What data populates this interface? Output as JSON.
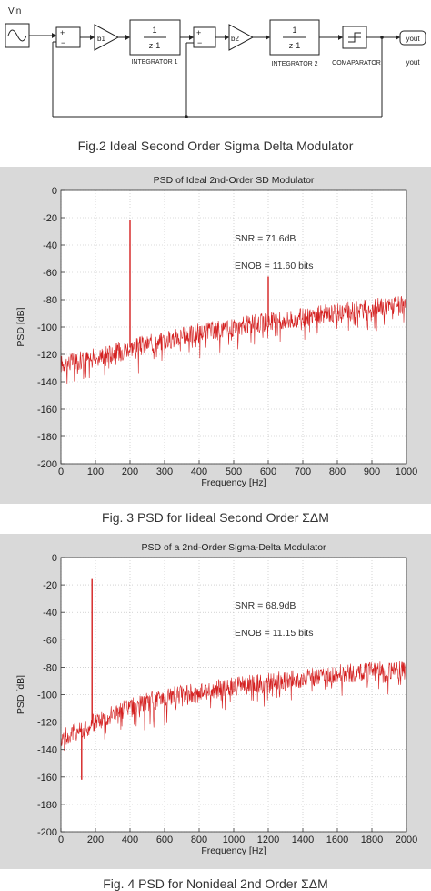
{
  "fig2": {
    "blocks": {
      "vin": "Vin",
      "b1": "b1",
      "b2": "b2",
      "int1_num": "1",
      "int1_den": "z-1",
      "int1_label": "INTEGRATOR 1",
      "int2_num": "1",
      "int2_den": "z-1",
      "int2_label": "INTEGRATOR 2",
      "comparator_label": "COMAPARATOR",
      "yout_block": "yout",
      "yout_label": "yout"
    },
    "caption": "Fig.2 Ideal Second Order Sigma Delta Modulator"
  },
  "fig3": {
    "caption": "Fig. 3 PSD for Iideal Second Order ΣΔM",
    "snr_text": "SNR = 71.6dB",
    "enob_text": "ENOB = 11.60 bits"
  },
  "fig4": {
    "caption": "Fig. 4 PSD for Nonideal 2nd Order ΣΔM",
    "snr_text": "SNR = 68.9dB",
    "enob_text": "ENOB = 11.15 bits"
  },
  "chart_data": [
    {
      "type": "line",
      "title": "PSD of  Ideal 2nd-Order SD Modulator",
      "xlabel": "Frequency [Hz]",
      "ylabel": "PSD [dB]",
      "xlim": [
        0,
        1000
      ],
      "ylim": [
        -200,
        0
      ],
      "xticks": [
        0,
        100,
        200,
        300,
        400,
        500,
        600,
        700,
        800,
        900,
        1000
      ],
      "yticks": [
        0,
        -20,
        -40,
        -60,
        -80,
        -100,
        -120,
        -140,
        -160,
        -180,
        -200
      ],
      "grid": true,
      "line_color": "#d42020",
      "series": [
        {
          "x": [
            0,
            100,
            200,
            300,
            400,
            500,
            600,
            700,
            800,
            900,
            1000
          ],
          "values": [
            -127,
            -122,
            -115,
            -110,
            -104,
            -100,
            -96,
            -93,
            -89,
            -86,
            -84
          ]
        }
      ],
      "spikes": [
        {
          "x": 200,
          "y": -22
        },
        {
          "x": 600,
          "y": -63
        }
      ]
    },
    {
      "type": "line",
      "title": "PSD of a 2nd-Order Sigma-Delta Modulator",
      "xlabel": "Frequency [Hz]",
      "ylabel": "PSD [dB]",
      "xlim": [
        0,
        2000
      ],
      "ylim": [
        -200,
        0
      ],
      "xticks": [
        0,
        200,
        400,
        600,
        800,
        1000,
        1200,
        1400,
        1600,
        1800,
        2000
      ],
      "yticks": [
        0,
        -20,
        -40,
        -60,
        -80,
        -100,
        -120,
        -140,
        -160,
        -180,
        -200
      ],
      "grid": true,
      "line_color": "#d42020",
      "series": [
        {
          "x": [
            0,
            200,
            400,
            600,
            800,
            1000,
            1200,
            1400,
            1600,
            1800,
            2000
          ],
          "values": [
            -132,
            -120,
            -108,
            -102,
            -98,
            -94,
            -91,
            -88,
            -85,
            -83,
            -82
          ]
        }
      ],
      "spikes": [
        {
          "x": 180,
          "y": -15
        },
        {
          "x": 120,
          "y": -162
        }
      ]
    }
  ]
}
